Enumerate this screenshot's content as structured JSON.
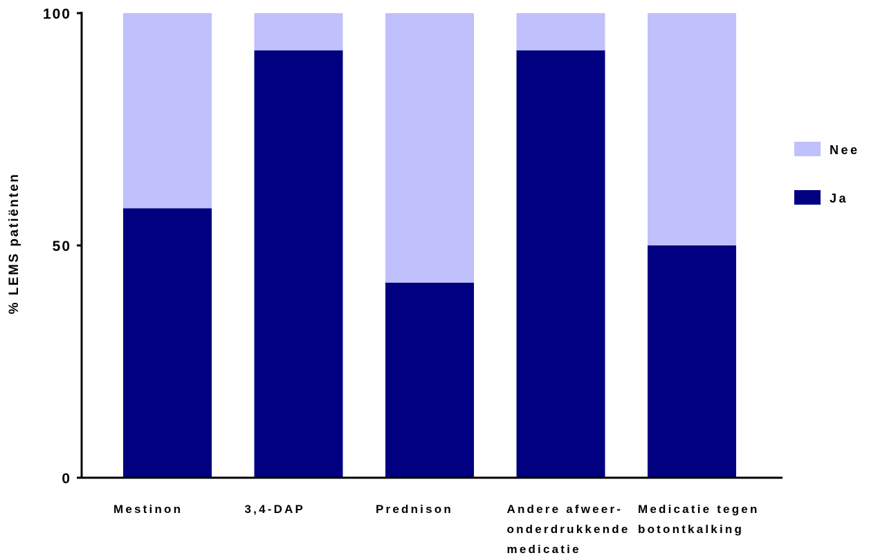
{
  "chart_data": {
    "type": "bar",
    "stacked": true,
    "title": "",
    "xlabel": "",
    "ylabel": "% LEMS patiënten",
    "ylim": [
      0,
      100
    ],
    "yticks": [
      0,
      50,
      100
    ],
    "categories": [
      [
        "Mestinon"
      ],
      [
        "3,4-DAP"
      ],
      [
        "Prednison"
      ],
      [
        "Andere afweer-",
        "onderdrukkende",
        "medicatie"
      ],
      [
        "Medicatie tegen",
        "botontkalking"
      ]
    ],
    "series": [
      {
        "name": "Ja",
        "color": "#000080",
        "values": [
          58,
          92,
          42,
          92,
          50
        ]
      },
      {
        "name": "Nee",
        "color": "#c0c0fc",
        "values": [
          42,
          8,
          58,
          8,
          50
        ]
      }
    ],
    "legend": {
      "position": "right",
      "order": [
        "Nee",
        "Ja"
      ]
    },
    "grid": false
  }
}
